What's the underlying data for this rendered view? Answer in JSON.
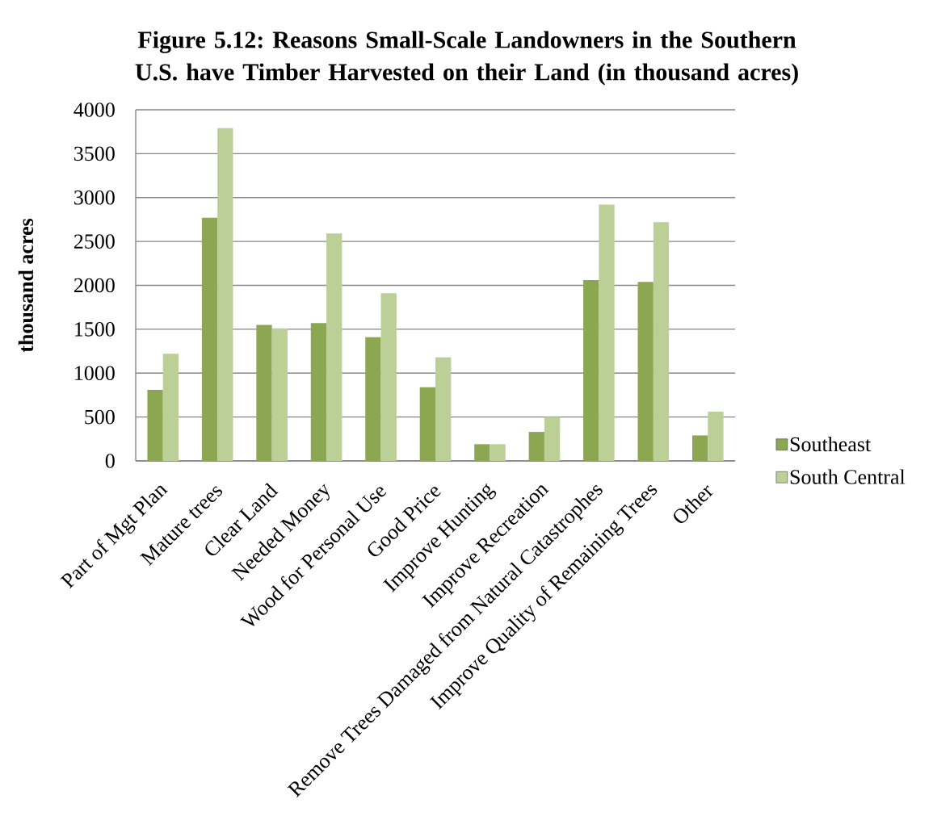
{
  "chart_data": {
    "type": "bar",
    "title": "Figure 5.12: Reasons Small-Scale Landowners in the Southern U.S. have Timber Harvested on their Land (in thousand acres)",
    "ylabel": "thousand acres",
    "categories": [
      "Part of Mgt Plan",
      "Mature trees",
      "Clear Land",
      "Needed Money",
      "Wood for Personal Use",
      "Good Price",
      "Improve Hunting",
      "Improve Recreation",
      "Remove Trees Damaged from Natural Catastrophes",
      "Improve Quality of Remaining Trees",
      "Other"
    ],
    "series": [
      {
        "name": "Southeast",
        "color": "#8ba752",
        "values": [
          810,
          2770,
          1550,
          1570,
          1410,
          840,
          190,
          330,
          2060,
          2040,
          290
        ]
      },
      {
        "name": "South Central",
        "color": "#bbcf97",
        "values": [
          1220,
          3790,
          1510,
          2590,
          1910,
          1180,
          190,
          500,
          2920,
          2720,
          560
        ]
      }
    ],
    "ylim": [
      0,
      4000
    ],
    "yticks": [
      0,
      500,
      1000,
      1500,
      2000,
      2500,
      3000,
      3500,
      4000
    ],
    "grid": "y",
    "legend": "right"
  }
}
